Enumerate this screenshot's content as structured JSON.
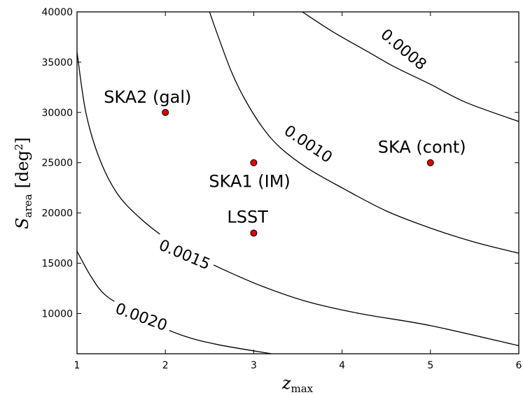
{
  "chart_data": {
    "type": "scatter",
    "title": "",
    "xlabel": "z",
    "xlabel_sub": "max",
    "ylabel": "S",
    "ylabel_sub": "area",
    "ylabel_unit": "[deg",
    "ylabel_unit_sup": "2",
    "ylabel_unit_close": "]",
    "xlim": [
      1,
      6
    ],
    "ylim": [
      6000,
      40000
    ],
    "x_ticks": [
      "1",
      "2",
      "3",
      "4",
      "5",
      "6"
    ],
    "y_ticks": [
      "10000",
      "15000",
      "20000",
      "25000",
      "30000",
      "35000",
      "40000"
    ],
    "grid": false,
    "point_color": "#e00000",
    "points": [
      {
        "label": "SKA2 (gal)",
        "x": 2,
        "y": 30000
      },
      {
        "label": "SKA1 (IM)",
        "x": 3,
        "y": 25000
      },
      {
        "label": "LSST",
        "x": 3,
        "y": 18000
      },
      {
        "label": "SKA (cont)",
        "x": 5,
        "y": 25000
      }
    ],
    "contours": [
      {
        "label": "0.0008",
        "points": [
          [
            3.55,
            40000
          ],
          [
            3.9,
            38000
          ],
          [
            4.3,
            36000
          ],
          [
            4.6,
            34500
          ],
          [
            5.0,
            32800
          ],
          [
            5.4,
            31000
          ],
          [
            6.0,
            29100
          ]
        ]
      },
      {
        "label": "0.0010",
        "points": [
          [
            2.5,
            40000
          ],
          [
            2.6,
            37500
          ],
          [
            2.75,
            34000
          ],
          [
            2.9,
            31300
          ],
          [
            3.1,
            28500
          ],
          [
            3.3,
            26500
          ],
          [
            3.6,
            24500
          ],
          [
            4.0,
            22500
          ],
          [
            4.5,
            20200
          ],
          [
            5.0,
            18500
          ],
          [
            5.5,
            17100
          ],
          [
            6.0,
            16000
          ]
        ]
      },
      {
        "label": "0.0015",
        "points": [
          [
            1.0,
            36000
          ],
          [
            1.1,
            30000
          ],
          [
            1.25,
            25500
          ],
          [
            1.45,
            22000
          ],
          [
            1.7,
            19600
          ],
          [
            2.0,
            17500
          ],
          [
            2.3,
            15900
          ],
          [
            2.7,
            14200
          ],
          [
            3.1,
            12700
          ],
          [
            3.6,
            11200
          ],
          [
            4.2,
            10000
          ],
          [
            5.0,
            8800
          ],
          [
            6.0,
            6800
          ]
        ]
      },
      {
        "label": "0.0020",
        "points": [
          [
            1.0,
            16200
          ],
          [
            1.15,
            13800
          ],
          [
            1.3,
            12000
          ],
          [
            1.5,
            10800
          ],
          [
            1.8,
            9300
          ],
          [
            2.2,
            7800
          ],
          [
            2.6,
            6900
          ],
          [
            3.2,
            6000
          ]
        ]
      }
    ],
    "contour_labels": [
      {
        "text": "0.0008",
        "x": 4.7,
        "y": 36300,
        "angle": 40
      },
      {
        "text": "0.0010",
        "x": 3.62,
        "y": 26900,
        "angle": 34
      },
      {
        "text": "0.0015",
        "x": 2.22,
        "y": 15900,
        "angle": 23
      },
      {
        "text": "0.0020",
        "x": 1.73,
        "y": 9700,
        "angle": 20
      }
    ]
  }
}
